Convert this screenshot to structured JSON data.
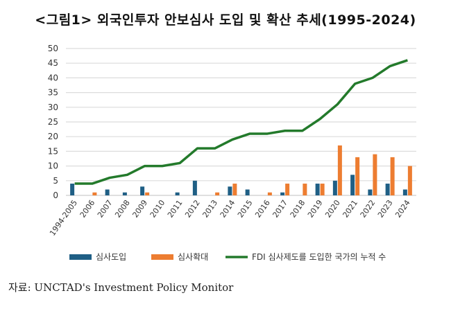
{
  "chart_data": {
    "type": "bar+line",
    "title": "<그림1> 외국인투자 안보심사 도입 및 확산 추세(1995-2024)",
    "categories": [
      "1994-2005",
      "2006",
      "2007",
      "2008",
      "2009",
      "2010",
      "2011",
      "2012",
      "2013",
      "2014",
      "2015",
      "2016",
      "2017",
      "2018",
      "2019",
      "2020",
      "2021",
      "2022",
      "2023",
      "2024"
    ],
    "series": [
      {
        "name": "심사도입",
        "type": "bar",
        "color": "#1f5f85",
        "values": [
          4,
          0,
          2,
          1,
          3,
          0,
          1,
          5,
          0,
          3,
          2,
          0,
          1,
          0,
          4,
          5,
          7,
          2,
          4,
          2
        ]
      },
      {
        "name": "심사확대",
        "type": "bar",
        "color": "#ed7d31",
        "values": [
          0,
          1,
          0,
          0,
          1,
          0,
          0,
          0,
          1,
          4,
          0,
          1,
          4,
          4,
          4,
          17,
          13,
          14,
          13,
          10
        ]
      },
      {
        "name": "FDI 심사제도를 도입한 국가의 누적 수",
        "type": "line",
        "color": "#237a2b",
        "values": [
          4,
          4,
          6,
          7,
          10,
          10,
          11,
          16,
          16,
          19,
          21,
          21,
          22,
          22,
          26,
          31,
          38,
          40,
          44,
          46
        ]
      }
    ],
    "ylim": [
      0,
      50
    ],
    "yticks": [
      0,
      5,
      10,
      15,
      20,
      25,
      30,
      35,
      40,
      45,
      50
    ],
    "grid": true,
    "legend_position": "bottom"
  },
  "source": "자료: UNCTAD's Investment Policy Monitor"
}
